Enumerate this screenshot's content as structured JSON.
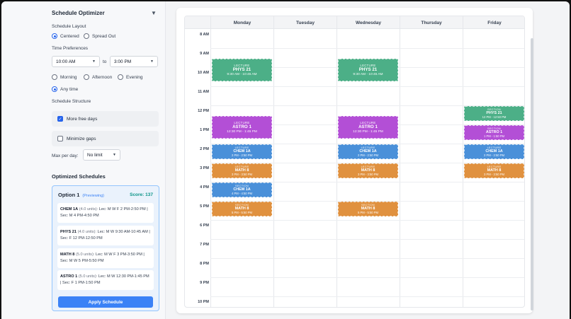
{
  "sidebar": {
    "title": "Schedule Optimizer",
    "layout_label": "Schedule Layout",
    "layout_options": [
      "Centered",
      "Spread Out"
    ],
    "time_pref_label": "Time Preferences",
    "time_from": "10:00 AM",
    "time_to_word": "to",
    "time_to": "3:00 PM",
    "time_options": [
      "Morning",
      "Afternoon",
      "Evening"
    ],
    "any_time": "Any time",
    "structure_label": "Schedule Structure",
    "more_free_days": "More free days",
    "minimize_gaps": "Minimize gaps",
    "max_per_day_label": "Max per day:",
    "max_per_day_value": "No limit",
    "optimized_label": "Optimized Schedules"
  },
  "option": {
    "name": "Option 1",
    "status": "(Previewing)",
    "score": "Score: 137",
    "courses": [
      {
        "code": "CHEM 1A",
        "units": "(4.0 units):",
        "detail": "Lec: M W F 2 PM-2:50 PM | Sec: M 4 PM-4:50 PM"
      },
      {
        "code": "PHYS 21",
        "units": "(4.0 units):",
        "detail": "Lec: M W 9:30 AM-10:45 AM | Sec: F 12 PM-12:50 PM"
      },
      {
        "code": "MATH 8",
        "units": "(5.0 units):",
        "detail": "Lec: M W F 3 PM-3:50 PM | Sec: M W 5 PM-5:50 PM"
      },
      {
        "code": "ASTRO 1",
        "units": "(5.0 units):",
        "detail": "Lec: M W 12:30 PM-1:45 PM | Sec: F 1 PM-1:50 PM"
      }
    ],
    "apply_label": "Apply Schedule"
  },
  "calendar": {
    "days": [
      "Monday",
      "Tuesday",
      "Wednesday",
      "Thursday",
      "Friday"
    ],
    "hours": [
      "8 AM",
      "9 AM",
      "10 AM",
      "11 AM",
      "12 PM",
      "1 PM",
      "2 PM",
      "3 PM",
      "4 PM",
      "5 PM",
      "6 PM",
      "7 PM",
      "8 PM",
      "9 PM",
      "10 PM"
    ],
    "events": [
      {
        "day": 0,
        "start": 9.5,
        "end": 10.75,
        "kind": "LECTURE",
        "course": "PHYS 21",
        "time": "9:30 AM - 10:45 AM",
        "color": "#4caf87"
      },
      {
        "day": 2,
        "start": 9.5,
        "end": 10.75,
        "kind": "LECTURE",
        "course": "PHYS 21",
        "time": "9:30 AM - 10:45 AM",
        "color": "#4caf87"
      },
      {
        "day": 0,
        "start": 12.5,
        "end": 13.75,
        "kind": "LECTURE",
        "course": "ASTRO 1",
        "time": "12:30 PM - 1:45 PM",
        "color": "#b34fd6"
      },
      {
        "day": 2,
        "start": 12.5,
        "end": 13.75,
        "kind": "LECTURE",
        "course": "ASTRO 1",
        "time": "12:30 PM - 1:45 PM",
        "color": "#b34fd6"
      },
      {
        "day": 4,
        "start": 12.0,
        "end": 12.83,
        "kind": "SECTION",
        "course": "PHYS 21",
        "time": "12 PM - 12:50 PM",
        "color": "#4caf87"
      },
      {
        "day": 4,
        "start": 13.0,
        "end": 13.83,
        "kind": "SECTION",
        "course": "ASTRO 1",
        "time": "1 PM - 1:50 PM",
        "color": "#b34fd6"
      },
      {
        "day": 0,
        "start": 14.0,
        "end": 14.83,
        "kind": "LECTURE",
        "course": "CHEM 1A",
        "time": "2 PM - 2:50 PM",
        "color": "#4a90d9"
      },
      {
        "day": 2,
        "start": 14.0,
        "end": 14.83,
        "kind": "LECTURE",
        "course": "CHEM 1A",
        "time": "2 PM - 2:50 PM",
        "color": "#4a90d9"
      },
      {
        "day": 4,
        "start": 14.0,
        "end": 14.83,
        "kind": "LECTURE",
        "course": "CHEM 1A",
        "time": "2 PM - 2:50 PM",
        "color": "#4a90d9"
      },
      {
        "day": 0,
        "start": 15.0,
        "end": 15.83,
        "kind": "LECTURE",
        "course": "MATH 8",
        "time": "3 PM - 3:50 PM",
        "color": "#e0913f"
      },
      {
        "day": 2,
        "start": 15.0,
        "end": 15.83,
        "kind": "LECTURE",
        "course": "MATH 8",
        "time": "3 PM - 3:50 PM",
        "color": "#e0913f"
      },
      {
        "day": 4,
        "start": 15.0,
        "end": 15.83,
        "kind": "LECTURE",
        "course": "MATH 8",
        "time": "3 PM - 3:50 PM",
        "color": "#e0913f"
      },
      {
        "day": 0,
        "start": 16.0,
        "end": 16.83,
        "kind": "SECTION",
        "course": "CHEM 1A",
        "time": "4 PM - 4:50 PM",
        "color": "#4a90d9"
      },
      {
        "day": 0,
        "start": 17.0,
        "end": 17.83,
        "kind": "SECTION",
        "course": "MATH 8",
        "time": "5 PM - 5:50 PM",
        "color": "#e0913f"
      },
      {
        "day": 2,
        "start": 17.0,
        "end": 17.83,
        "kind": "SECTION",
        "course": "MATH 8",
        "time": "5 PM - 5:50 PM",
        "color": "#e0913f"
      }
    ]
  }
}
